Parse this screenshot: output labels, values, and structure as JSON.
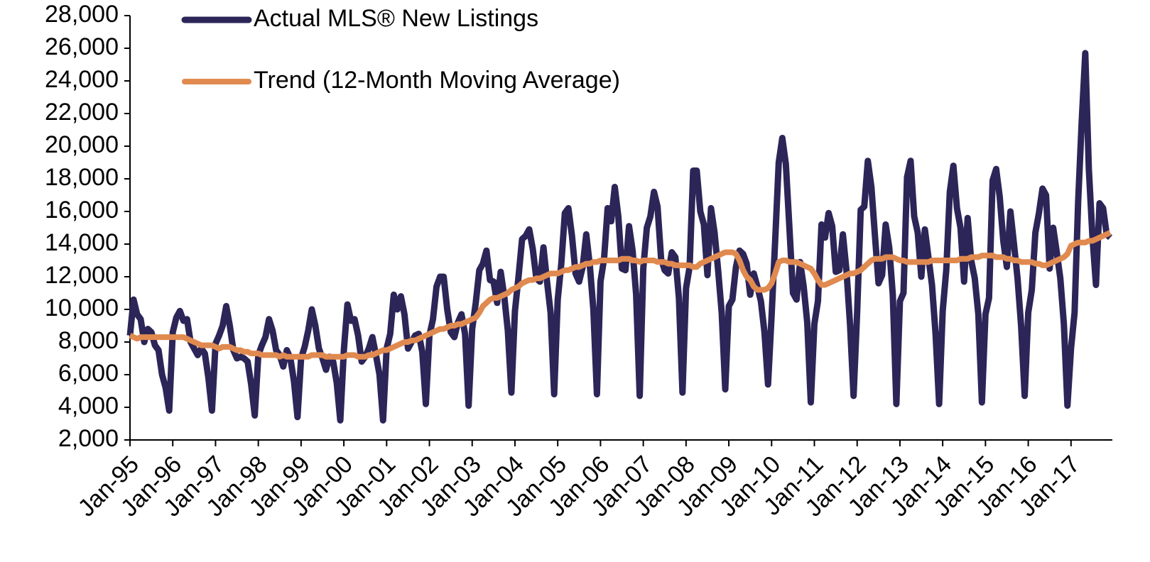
{
  "chart_data": {
    "type": "line",
    "categories": [
      "Jan-95",
      null,
      null,
      null,
      null,
      null,
      null,
      null,
      null,
      null,
      null,
      null,
      "Jan-96",
      null,
      null,
      null,
      null,
      null,
      null,
      null,
      null,
      null,
      null,
      null,
      "Jan-97",
      null,
      null,
      null,
      null,
      null,
      null,
      null,
      null,
      null,
      null,
      null,
      "Jan-98",
      null,
      null,
      null,
      null,
      null,
      null,
      null,
      null,
      null,
      null,
      null,
      "Jan-99",
      null,
      null,
      null,
      null,
      null,
      null,
      null,
      null,
      null,
      null,
      null,
      "Jan-00",
      null,
      null,
      null,
      null,
      null,
      null,
      null,
      null,
      null,
      null,
      null,
      "Jan-01",
      null,
      null,
      null,
      null,
      null,
      null,
      null,
      null,
      null,
      null,
      null,
      "Jan-02",
      null,
      null,
      null,
      null,
      null,
      null,
      null,
      null,
      null,
      null,
      null,
      "Jan-03",
      null,
      null,
      null,
      null,
      null,
      null,
      null,
      null,
      null,
      null,
      null,
      "Jan-04",
      null,
      null,
      null,
      null,
      null,
      null,
      null,
      null,
      null,
      null,
      null,
      "Jan-05",
      null,
      null,
      null,
      null,
      null,
      null,
      null,
      null,
      null,
      null,
      null,
      "Jan-06",
      null,
      null,
      null,
      null,
      null,
      null,
      null,
      null,
      null,
      null,
      null,
      "Jan-07",
      null,
      null,
      null,
      null,
      null,
      null,
      null,
      null,
      null,
      null,
      null,
      "Jan-08",
      null,
      null,
      null,
      null,
      null,
      null,
      null,
      null,
      null,
      null,
      null,
      "Jan-09",
      null,
      null,
      null,
      null,
      null,
      null,
      null,
      null,
      null,
      null,
      null,
      "Jan-10",
      null,
      null,
      null,
      null,
      null,
      null,
      null,
      null,
      null,
      null,
      null,
      "Jan-11",
      null,
      null,
      null,
      null,
      null,
      null,
      null,
      null,
      null,
      null,
      null,
      "Jan-12",
      null,
      null,
      null,
      null,
      null,
      null,
      null,
      null,
      null,
      null,
      null,
      "Jan-13",
      null,
      null,
      null,
      null,
      null,
      null,
      null,
      null,
      null,
      null,
      null,
      "Jan-14",
      null,
      null,
      null,
      null,
      null,
      null,
      null,
      null,
      null,
      null,
      null,
      "Jan-15",
      null,
      null,
      null,
      null,
      null,
      null,
      null,
      null,
      null,
      null,
      null,
      "Jan-16",
      null,
      null,
      null,
      null,
      null,
      null,
      null,
      null,
      null,
      null,
      null,
      "Jan-17",
      null,
      null,
      null,
      null,
      null,
      null,
      null,
      null,
      null,
      null,
      null
    ],
    "series": [
      {
        "name": "Actual MLS® New Listings",
        "color": "#2c2558",
        "width": 9,
        "values": [
          8400,
          10600,
          9700,
          9400,
          8000,
          8800,
          8600,
          7800,
          7500,
          6000,
          5200,
          3800,
          8600,
          9500,
          9900,
          9300,
          9400,
          8000,
          7600,
          7200,
          7600,
          7300,
          5800,
          3800,
          7900,
          8400,
          9000,
          10200,
          9000,
          7500,
          7000,
          7100,
          7000,
          6800,
          5400,
          3500,
          7200,
          7800,
          8300,
          9400,
          8700,
          7500,
          7200,
          6500,
          7500,
          7000,
          5600,
          3400,
          7000,
          7700,
          8700,
          10000,
          9000,
          7600,
          7000,
          6300,
          7100,
          6800,
          5500,
          3200,
          7500,
          10300,
          9300,
          9400,
          8400,
          6800,
          7100,
          7600,
          8300,
          7200,
          6000,
          3200,
          7600,
          8500,
          10900,
          10000,
          10800,
          9700,
          7600,
          8000,
          8400,
          8500,
          7400,
          4200,
          8400,
          9400,
          11400,
          12000,
          12000,
          10000,
          8600,
          8300,
          9200,
          9700,
          8500,
          4100,
          8800,
          10400,
          12400,
          12800,
          13600,
          11800,
          11700,
          10400,
          12300,
          10800,
          8700,
          4900,
          9900,
          12000,
          14300,
          14500,
          14900,
          13700,
          11900,
          11700,
          13800,
          11700,
          9800,
          4800,
          10600,
          12800,
          15900,
          16200,
          14500,
          12200,
          11700,
          12600,
          14600,
          12700,
          10000,
          4800,
          11700,
          13100,
          16200,
          15400,
          17500,
          15700,
          12500,
          12400,
          15100,
          13600,
          10900,
          4700,
          12500,
          15000,
          15700,
          17200,
          16300,
          13100,
          12400,
          12200,
          13500,
          13200,
          10700,
          4900,
          11300,
          12600,
          18500,
          18500,
          16000,
          15200,
          12100,
          16200,
          14700,
          12400,
          9800,
          5100,
          10200,
          10600,
          12600,
          13600,
          13400,
          12800,
          10900,
          12200,
          11400,
          10500,
          8600,
          5400,
          9600,
          14200,
          19000,
          20500,
          18900,
          15000,
          11000,
          10600,
          12900,
          11400,
          9200,
          4300,
          9100,
          10500,
          15200,
          14400,
          15900,
          15100,
          12300,
          12400,
          14600,
          12400,
          9100,
          4700,
          9800,
          16100,
          16300,
          19100,
          17500,
          14500,
          11600,
          12100,
          15200,
          13800,
          10900,
          4200,
          10500,
          11000,
          18100,
          19100,
          15700,
          14700,
          12000,
          14900,
          13200,
          11500,
          8500,
          4200,
          9900,
          12400,
          17200,
          18800,
          16200,
          15000,
          11700,
          15600,
          13000,
          11900,
          9700,
          4300,
          9700,
          10700,
          17900,
          18600,
          16900,
          14200,
          12600,
          16000,
          14000,
          11900,
          9000,
          4700,
          9800,
          11200,
          14700,
          15900,
          17400,
          17000,
          12500,
          15000,
          13500,
          11900,
          9100,
          4100,
          7600,
          9800,
          16600,
          21500,
          25700,
          18600,
          14500,
          11500,
          16500,
          16200,
          14600,
          14400
        ]
      },
      {
        "name": "Trend (12-Month Moving Average)",
        "color": "#e08a50",
        "width": 8,
        "values": [
          8400,
          8300,
          8200,
          8300,
          8300,
          8300,
          8300,
          8300,
          8300,
          8300,
          8300,
          8300,
          8300,
          8300,
          8300,
          8300,
          8200,
          8100,
          8000,
          7900,
          7800,
          7800,
          7800,
          7800,
          7700,
          7600,
          7700,
          7700,
          7700,
          7600,
          7500,
          7500,
          7400,
          7400,
          7300,
          7300,
          7300,
          7200,
          7200,
          7200,
          7200,
          7200,
          7100,
          7200,
          7100,
          7100,
          7100,
          7100,
          7100,
          7100,
          7100,
          7200,
          7200,
          7200,
          7200,
          7100,
          7100,
          7100,
          7100,
          7100,
          7100,
          7200,
          7200,
          7200,
          7100,
          7100,
          7100,
          7200,
          7200,
          7300,
          7400,
          7500,
          7500,
          7600,
          7700,
          7800,
          7900,
          8000,
          8000,
          8100,
          8100,
          8200,
          8300,
          8400,
          8500,
          8600,
          8700,
          8800,
          8800,
          8900,
          9000,
          9000,
          9100,
          9100,
          9200,
          9300,
          9400,
          9500,
          9800,
          10200,
          10400,
          10600,
          10700,
          10700,
          10800,
          10900,
          11000,
          11200,
          11300,
          11400,
          11600,
          11700,
          11800,
          11800,
          11900,
          11900,
          12000,
          12100,
          12200,
          12200,
          12200,
          12300,
          12400,
          12400,
          12500,
          12600,
          12600,
          12700,
          12800,
          12800,
          12900,
          12900,
          13000,
          13000,
          13000,
          13000,
          13000,
          13000,
          13100,
          13100,
          13100,
          13000,
          13000,
          12900,
          13000,
          13000,
          13000,
          13000,
          12900,
          12900,
          12900,
          12800,
          12800,
          12700,
          12700,
          12700,
          12700,
          12700,
          12600,
          12600,
          12800,
          12900,
          13000,
          13100,
          13200,
          13300,
          13400,
          13500,
          13500,
          13500,
          13400,
          13000,
          12400,
          12000,
          11800,
          11400,
          11200,
          11200,
          11200,
          11300,
          11600,
          12200,
          12900,
          13000,
          13000,
          12900,
          12900,
          12900,
          12800,
          12700,
          12600,
          12500,
          12200,
          11800,
          11500,
          11500,
          11600,
          11700,
          11800,
          11900,
          12000,
          12100,
          12200,
          12200,
          12300,
          12400,
          12600,
          12800,
          13000,
          13100,
          13100,
          13100,
          13200,
          13200,
          13200,
          13100,
          13000,
          13000,
          12900,
          12900,
          12900,
          12900,
          12900,
          12900,
          12900,
          13000,
          13000,
          13000,
          13000,
          13000,
          13000,
          13000,
          13000,
          13100,
          13100,
          13100,
          13200,
          13200,
          13200,
          13300,
          13300,
          13300,
          13300,
          13200,
          13200,
          13200,
          13100,
          13100,
          13000,
          13000,
          12900,
          12900,
          12900,
          12900,
          12800,
          12800,
          12700,
          12700,
          12800,
          12900,
          13000,
          13100,
          13200,
          13400,
          13900,
          14000,
          14100,
          14100,
          14100,
          14200,
          14200,
          14300,
          14400,
          14500,
          14600,
          14700
        ]
      }
    ],
    "ylim": [
      2000,
      28000
    ],
    "yticks": [
      {
        "value": 2000,
        "label": "2,000"
      },
      {
        "value": 4000,
        "label": "4,000"
      },
      {
        "value": 6000,
        "label": "6,000"
      },
      {
        "value": 8000,
        "label": "8,000"
      },
      {
        "value": 10000,
        "label": "10,000"
      },
      {
        "value": 12000,
        "label": "12,000"
      },
      {
        "value": 14000,
        "label": "14,000"
      },
      {
        "value": 16000,
        "label": "16,000"
      },
      {
        "value": 18000,
        "label": "18,000"
      },
      {
        "value": 20000,
        "label": "20,000"
      },
      {
        "value": 22000,
        "label": "22,000"
      },
      {
        "value": 24000,
        "label": "24,000"
      },
      {
        "value": 26000,
        "label": "26,000"
      },
      {
        "value": 28000,
        "label": "28,000"
      }
    ],
    "grid": false
  }
}
